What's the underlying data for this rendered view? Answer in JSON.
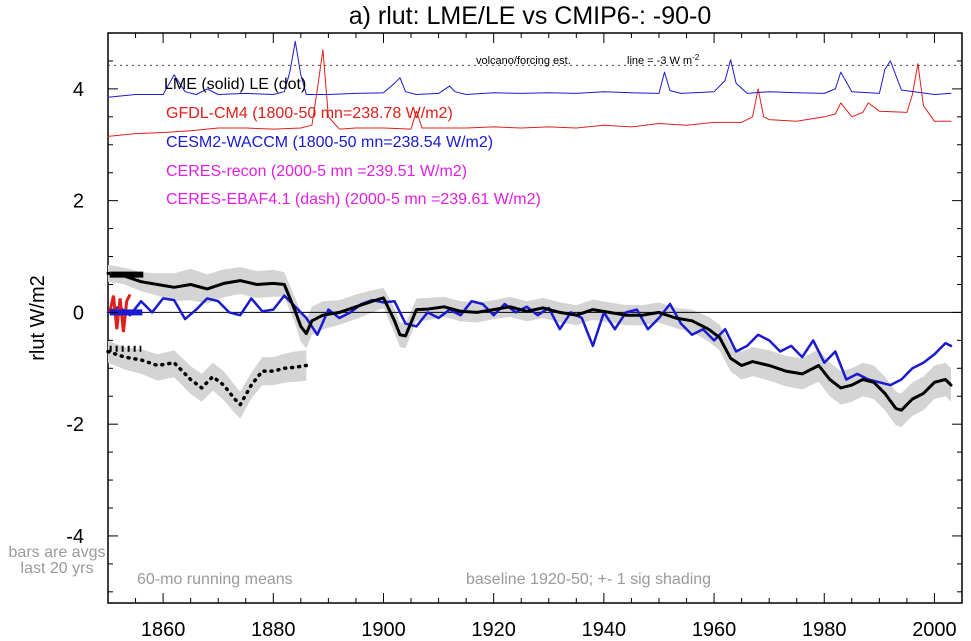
{
  "chart_data": {
    "type": "line",
    "title": "a) rlut: LME/LE vs CMIP6-: -90-0",
    "ylabel": "rlut W/m2",
    "xlabel": "",
    "xlim": [
      1850,
      2005
    ],
    "ylim": [
      -5.2,
      5.0
    ],
    "x_ticks": [
      1860,
      1880,
      1900,
      1920,
      1940,
      1960,
      1980,
      2000
    ],
    "y_ticks": [
      4,
      2,
      0,
      -2,
      -4
    ],
    "y_tick_labels": [
      "4",
      "2",
      "0",
      "-2",
      "-4"
    ],
    "grid": false,
    "legend_position": "top-left",
    "legend": {
      "lme_le": "LME (solid)   LE (dot)",
      "gfdl": "GFDL-CM4 (1800-50 mn=238.78 W/m2)",
      "cesm": "CESM2-WACCM (1800-50 mn=238.54 W/m2)",
      "ceres_recon": "CERES-recon (2000-5 mn =239.51 W/m2)",
      "ceres_ebaf": "CERES-EBAF4.1 (dash) (2000-5 mn =239.61 W/m2)"
    },
    "annotations": {
      "volcano": "volcano/forcing est.",
      "line_note": "line = -3 W m",
      "line_note_sup": "-2",
      "running": "60-mo running means",
      "baseline": "baseline 1920-50; +- 1 sig shading",
      "bars1": "bars are avgs",
      "bars2": "last 20 yrs"
    },
    "colors": {
      "gfdl": "#e0201a",
      "cesm": "#1a1ad0",
      "ceres": "#e020e0",
      "lme": "#000000",
      "shade": "#d4d4d4",
      "note": "#9a9a9a"
    },
    "reference_line_y": 4.42,
    "series": [
      {
        "name": "LME (solid)",
        "color": "#000000",
        "x": [
          1850,
          1853,
          1856,
          1859,
          1862,
          1865,
          1868,
          1871,
          1874,
          1877,
          1880,
          1882,
          1884,
          1885,
          1886,
          1887,
          1889,
          1892,
          1895,
          1898,
          1900,
          1902,
          1903,
          1904,
          1906,
          1908,
          1911,
          1914,
          1917,
          1920,
          1923,
          1926,
          1929,
          1932,
          1935,
          1938,
          1941,
          1944,
          1947,
          1950,
          1953,
          1956,
          1959,
          1961,
          1963,
          1965,
          1967,
          1970,
          1973,
          1976,
          1979,
          1981,
          1983,
          1985,
          1987,
          1989,
          1991,
          1993,
          1994,
          1996,
          1998,
          2000,
          2002,
          2003
        ],
        "y": [
          0.7,
          0.65,
          0.55,
          0.5,
          0.45,
          0.5,
          0.42,
          0.52,
          0.57,
          0.5,
          0.52,
          0.5,
          0.02,
          -0.25,
          -0.38,
          -0.15,
          -0.05,
          0.0,
          0.1,
          0.2,
          0.26,
          -0.15,
          -0.4,
          -0.42,
          0.05,
          0.06,
          0.1,
          0.02,
          0.0,
          0.05,
          0.1,
          0.02,
          0.08,
          0.0,
          -0.05,
          0.05,
          0.0,
          -0.05,
          -0.05,
          0.0,
          -0.1,
          -0.15,
          -0.3,
          -0.45,
          -0.82,
          -0.95,
          -0.88,
          -0.95,
          -1.05,
          -1.1,
          -0.95,
          -1.2,
          -1.35,
          -1.3,
          -1.2,
          -1.25,
          -1.45,
          -1.72,
          -1.75,
          -1.55,
          -1.45,
          -1.25,
          -1.2,
          -1.3
        ]
      },
      {
        "name": "CESM2-WACCM",
        "color": "#1a1ad0",
        "x": [
          1850,
          1852,
          1854,
          1856,
          1858,
          1860,
          1862,
          1864,
          1866,
          1868,
          1870,
          1872,
          1874,
          1876,
          1878,
          1880,
          1882,
          1884,
          1886,
          1888,
          1890,
          1892,
          1894,
          1896,
          1898,
          1900,
          1902,
          1904,
          1906,
          1908,
          1910,
          1912,
          1914,
          1916,
          1918,
          1920,
          1922,
          1924,
          1926,
          1928,
          1930,
          1932,
          1934,
          1936,
          1938,
          1940,
          1942,
          1944,
          1946,
          1948,
          1950,
          1952,
          1954,
          1956,
          1958,
          1960,
          1962,
          1964,
          1966,
          1968,
          1970,
          1972,
          1974,
          1976,
          1978,
          1980,
          1982,
          1984,
          1986,
          1988,
          1990,
          1992,
          1994,
          1996,
          1998,
          2000,
          2002,
          2003
        ],
        "y": [
          0.0,
          0.1,
          -0.05,
          0.2,
          0.0,
          0.25,
          0.22,
          -0.12,
          0.05,
          0.25,
          0.2,
          0.0,
          -0.05,
          0.25,
          0.02,
          0.05,
          0.3,
          0.1,
          -0.1,
          -0.4,
          0.05,
          -0.1,
          0.0,
          0.15,
          0.22,
          0.18,
          0.2,
          -0.2,
          -0.25,
          0.0,
          -0.1,
          0.05,
          -0.05,
          0.2,
          0.15,
          -0.05,
          0.15,
          0.0,
          0.1,
          -0.05,
          0.08,
          -0.3,
          0.0,
          -0.1,
          -0.6,
          0.0,
          -0.3,
          0.0,
          0.05,
          -0.3,
          -0.1,
          0.15,
          -0.2,
          -0.4,
          -0.3,
          -0.5,
          -0.3,
          -0.7,
          -0.6,
          -0.4,
          -0.5,
          -0.7,
          -0.6,
          -0.8,
          -0.5,
          -0.9,
          -0.7,
          -1.2,
          -1.1,
          -1.2,
          -1.25,
          -1.3,
          -1.2,
          -1.0,
          -0.9,
          -0.75,
          -0.55,
          -0.6
        ]
      },
      {
        "name": "LE (dot)",
        "color": "#000000",
        "style": "dotted",
        "x": [
          1850,
          1853,
          1856,
          1859,
          1862,
          1865,
          1867,
          1869,
          1871,
          1873,
          1874,
          1876,
          1878,
          1880,
          1882,
          1884,
          1886
        ],
        "y": [
          -0.7,
          -0.8,
          -0.85,
          -0.95,
          -0.9,
          -1.2,
          -1.35,
          -1.15,
          -1.3,
          -1.55,
          -1.65,
          -1.3,
          -1.05,
          -1.05,
          -1.0,
          -0.98,
          -0.95
        ]
      },
      {
        "name": "CESM2-WACCM forcing",
        "color": "#1a1ad0",
        "x": [
          1850,
          1855,
          1860,
          1862,
          1864,
          1866,
          1868,
          1870,
          1875,
          1880,
          1882,
          1883,
          1884,
          1885,
          1886,
          1888,
          1890,
          1895,
          1900,
          1902,
          1903,
          1904,
          1906,
          1910,
          1912,
          1913,
          1915,
          1920,
          1925,
          1930,
          1935,
          1940,
          1945,
          1950,
          1951,
          1952,
          1954,
          1960,
          1962,
          1963,
          1964,
          1966,
          1970,
          1975,
          1980,
          1982,
          1983,
          1985,
          1990,
          1991,
          1992,
          1994,
          2000,
          2003
        ],
        "y": [
          3.85,
          3.9,
          3.9,
          4.25,
          3.95,
          3.9,
          4.0,
          3.9,
          3.92,
          3.9,
          3.95,
          4.3,
          4.85,
          4.25,
          3.9,
          3.9,
          3.9,
          3.92,
          3.93,
          4.1,
          4.2,
          3.95,
          3.9,
          3.92,
          4.05,
          3.95,
          3.9,
          3.93,
          3.92,
          3.93,
          3.92,
          3.95,
          3.93,
          3.92,
          4.3,
          3.97,
          3.92,
          3.95,
          4.15,
          4.52,
          4.1,
          3.92,
          3.95,
          3.93,
          3.92,
          4.0,
          4.3,
          3.95,
          3.92,
          4.35,
          4.5,
          3.98,
          3.9,
          3.92
        ]
      },
      {
        "name": "GFDL-CM4 forcing",
        "color": "#e0201a",
        "x": [
          1850,
          1855,
          1860,
          1865,
          1870,
          1875,
          1880,
          1885,
          1887,
          1888,
          1889,
          1890,
          1892,
          1895,
          1900,
          1905,
          1906,
          1907,
          1908,
          1910,
          1915,
          1920,
          1925,
          1930,
          1935,
          1940,
          1945,
          1950,
          1955,
          1960,
          1965,
          1967,
          1968,
          1969,
          1970,
          1975,
          1980,
          1982,
          1983,
          1985,
          1987,
          1988,
          1990,
          1995,
          1996,
          1997,
          1998,
          2000,
          2003
        ],
        "y": [
          3.15,
          3.2,
          3.22,
          3.25,
          3.3,
          3.3,
          3.28,
          3.3,
          3.35,
          4.0,
          4.7,
          3.5,
          3.28,
          3.3,
          3.3,
          3.28,
          3.6,
          3.3,
          3.3,
          3.3,
          3.3,
          3.32,
          3.3,
          3.32,
          3.3,
          3.35,
          3.32,
          3.38,
          3.35,
          3.4,
          3.4,
          3.5,
          4.0,
          3.5,
          3.45,
          3.42,
          3.5,
          3.55,
          3.75,
          3.5,
          3.58,
          3.75,
          3.6,
          3.58,
          3.9,
          4.45,
          3.7,
          3.42,
          3.42
        ]
      }
    ],
    "lme_band_upper": [
      0.85,
      0.8,
      0.72,
      0.7,
      0.7,
      0.78,
      0.68,
      0.77,
      0.81,
      0.74,
      0.76,
      0.72,
      0.25,
      0.02,
      -0.12,
      0.1,
      0.2,
      0.22,
      0.32,
      0.4,
      0.44,
      0.07,
      -0.18,
      -0.2,
      0.25,
      0.26,
      0.28,
      0.2,
      0.18,
      0.22,
      0.28,
      0.2,
      0.26,
      0.18,
      0.13,
      0.23,
      0.18,
      0.13,
      0.13,
      0.18,
      0.08,
      0.05,
      -0.08,
      -0.22,
      -0.58,
      -0.7,
      -0.62,
      -0.68,
      -0.78,
      -0.82,
      -0.66,
      -0.9,
      -1.05,
      -1.0,
      -0.9,
      -0.95,
      -1.15,
      -1.42,
      -1.45,
      -1.25,
      -1.15,
      -0.95,
      -0.9,
      -1.0
    ],
    "lme_band_lower": [
      0.55,
      0.5,
      0.38,
      0.3,
      0.2,
      0.22,
      0.16,
      0.27,
      0.33,
      0.26,
      0.28,
      0.28,
      -0.21,
      -0.52,
      -0.64,
      -0.4,
      -0.3,
      -0.22,
      -0.12,
      0.0,
      0.08,
      -0.37,
      -0.62,
      -0.64,
      -0.15,
      -0.14,
      -0.08,
      -0.16,
      -0.18,
      -0.12,
      -0.08,
      -0.16,
      -0.1,
      -0.18,
      -0.23,
      -0.13,
      -0.18,
      -0.23,
      -0.23,
      -0.18,
      -0.28,
      -0.35,
      -0.52,
      -0.68,
      -1.06,
      -1.2,
      -1.14,
      -1.22,
      -1.32,
      -1.38,
      -1.24,
      -1.5,
      -1.65,
      -1.6,
      -1.5,
      -1.55,
      -1.75,
      -2.02,
      -2.05,
      -1.85,
      -1.75,
      -1.55,
      -1.5,
      -1.6
    ],
    "le_band_upper": [
      -0.5,
      -0.62,
      -0.66,
      -0.75,
      -0.68,
      -0.96,
      -1.1,
      -0.9,
      -1.05,
      -1.3,
      -1.42,
      -1.08,
      -0.8,
      -0.8,
      -0.74,
      -0.7,
      -0.68
    ],
    "le_band_lower": [
      -0.9,
      -1.02,
      -1.1,
      -1.22,
      -1.16,
      -1.46,
      -1.6,
      -1.4,
      -1.57,
      -1.8,
      -1.9,
      -1.54,
      -1.3,
      -1.3,
      -1.26,
      -1.24,
      -1.22
    ]
  }
}
